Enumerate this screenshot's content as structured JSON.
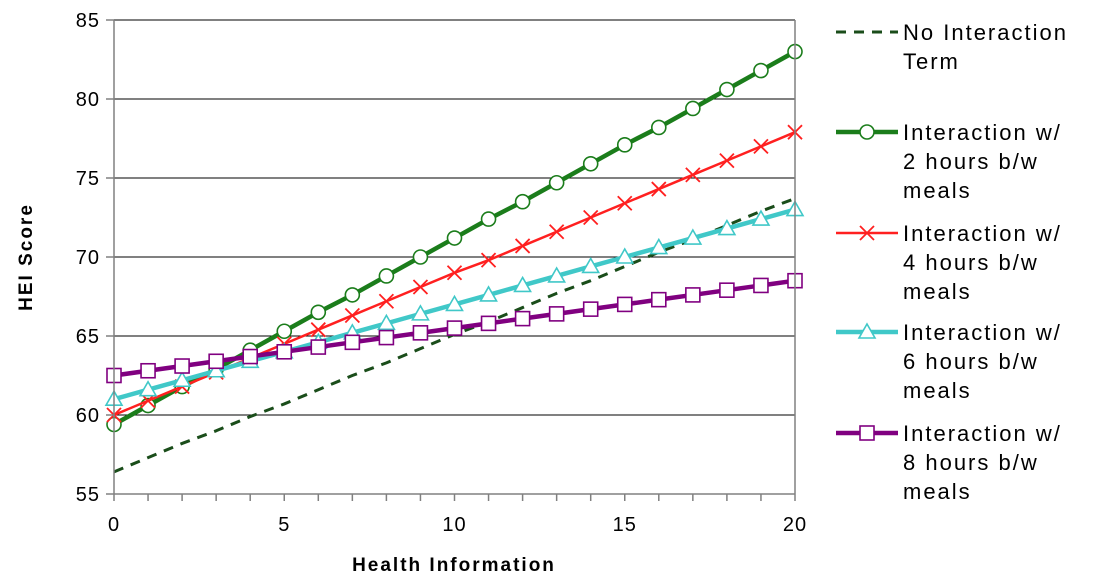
{
  "chart_data": {
    "type": "line",
    "title": "",
    "xlabel": "Health Information",
    "ylabel": "HEI Score",
    "xlim": [
      0,
      20
    ],
    "ylim": [
      55,
      85
    ],
    "xticks": [
      "0",
      "5",
      "10",
      "15",
      "20"
    ],
    "yticks": [
      "55",
      "60",
      "65",
      "70",
      "75",
      "80",
      "85"
    ],
    "x": [
      0,
      1,
      2,
      3,
      4,
      5,
      6,
      7,
      8,
      9,
      10,
      11,
      12,
      13,
      14,
      15,
      16,
      17,
      18,
      19,
      20
    ],
    "grid": "horizontal",
    "legend_position": "right",
    "series": [
      {
        "name": "No Interaction Term",
        "color": "#1a4d1a",
        "style": "dashed",
        "marker": "none",
        "values": [
          56.4,
          57.3,
          58.2,
          59.0,
          59.9,
          60.7,
          61.6,
          62.5,
          63.3,
          64.2,
          65.1,
          65.9,
          66.8,
          67.7,
          68.5,
          69.4,
          70.3,
          71.1,
          72.0,
          72.9,
          73.7
        ]
      },
      {
        "name": "Interaction w/ 2 hours b/w meals",
        "color": "#1b7d1b",
        "style": "solid",
        "marker": "circle",
        "values": [
          59.4,
          60.6,
          61.8,
          62.9,
          64.1,
          65.3,
          66.5,
          67.6,
          68.8,
          70.0,
          71.2,
          72.4,
          73.5,
          74.7,
          75.9,
          77.1,
          78.2,
          79.4,
          80.6,
          81.8,
          83.0
        ]
      },
      {
        "name": "Interaction w/ 4 hours b/w meals",
        "color": "#ff2020",
        "style": "solid",
        "marker": "x",
        "values": [
          60.0,
          60.9,
          61.8,
          62.7,
          63.6,
          64.5,
          65.4,
          66.3,
          67.2,
          68.1,
          69.0,
          69.8,
          70.7,
          71.6,
          72.5,
          73.4,
          74.3,
          75.2,
          76.1,
          77.0,
          77.9
        ]
      },
      {
        "name": "Interaction w/ 6 hours b/w meals",
        "color": "#40c8c8",
        "style": "solid",
        "marker": "triangle",
        "values": [
          61.0,
          61.6,
          62.2,
          62.8,
          63.4,
          64.0,
          64.6,
          65.2,
          65.8,
          66.4,
          67.0,
          67.6,
          68.2,
          68.8,
          69.4,
          70.0,
          70.6,
          71.2,
          71.8,
          72.4,
          73.0
        ]
      },
      {
        "name": "Interaction w/ 8 hours b/w meals",
        "color": "#800080",
        "style": "solid",
        "marker": "square",
        "values": [
          62.5,
          62.8,
          63.1,
          63.4,
          63.7,
          64.0,
          64.3,
          64.6,
          64.9,
          65.2,
          65.5,
          65.8,
          66.1,
          66.4,
          66.7,
          67.0,
          67.3,
          67.6,
          67.9,
          68.2,
          68.5
        ]
      }
    ],
    "legend": [
      {
        "lines": [
          "No Interaction",
          "Term"
        ]
      },
      {
        "lines": [
          "Interaction w/",
          "2 hours b/w",
          "meals"
        ]
      },
      {
        "lines": [
          "Interaction w/",
          "4 hours b/w",
          "meals"
        ]
      },
      {
        "lines": [
          "Interaction w/",
          "6 hours b/w",
          "meals"
        ]
      },
      {
        "lines": [
          "Interaction w/",
          "8 hours b/w",
          "meals"
        ]
      }
    ]
  }
}
